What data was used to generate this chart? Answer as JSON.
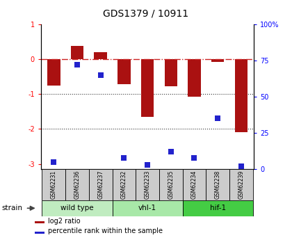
{
  "title": "GDS1379 / 10911",
  "samples": [
    "GSM62231",
    "GSM62236",
    "GSM62237",
    "GSM62232",
    "GSM62233",
    "GSM62235",
    "GSM62234",
    "GSM62238",
    "GSM62239"
  ],
  "log2_ratio": [
    -0.75,
    0.38,
    0.2,
    -0.72,
    -1.65,
    -0.78,
    -1.08,
    -0.08,
    -2.1
  ],
  "percentile_rank": [
    5,
    72,
    65,
    8,
    3,
    12,
    8,
    35,
    2
  ],
  "groups": [
    {
      "label": "wild type",
      "indices": [
        0,
        1,
        2
      ],
      "color": "#c0ecc0"
    },
    {
      "label": "vhl-1",
      "indices": [
        3,
        4,
        5
      ],
      "color": "#a8e8a8"
    },
    {
      "label": "hif-1",
      "indices": [
        6,
        7,
        8
      ],
      "color": "#44cc44"
    }
  ],
  "ylim_left": [
    -3.15,
    1.0
  ],
  "ylim_right": [
    0,
    100
  ],
  "yticks_left": [
    -3,
    -2,
    -1,
    0,
    1
  ],
  "yticks_right": [
    0,
    25,
    50,
    75,
    100
  ],
  "ytick_labels_right": [
    "0",
    "25",
    "50",
    "75",
    "100%"
  ],
  "bar_color": "#aa1111",
  "dot_color": "#2222cc",
  "ref_line_color": "#cc2222",
  "dotted_line_color": "#333333",
  "bar_width": 0.55,
  "dot_size": 28,
  "bg_color": "#ffffff",
  "label_box_color": "#cccccc",
  "strain_label": "strain",
  "legend_items": [
    {
      "label": "log2 ratio",
      "color": "#aa1111"
    },
    {
      "label": "percentile rank within the sample",
      "color": "#2222cc"
    }
  ],
  "fig_width": 4.2,
  "fig_height": 3.45,
  "dpi": 100
}
